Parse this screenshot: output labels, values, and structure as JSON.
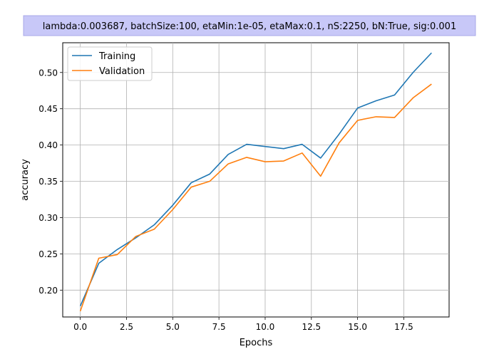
{
  "chart_data": {
    "type": "line",
    "title": "lambda:0.003687, batchSize:100, etaMin:1e-05, etaMax:0.1, nS:2250, bN:True, sig:0.001",
    "xlabel": "Epochs",
    "ylabel": "accuracy",
    "xlim": [
      -0.95,
      19.95
    ],
    "ylim": [
      0.163,
      0.541
    ],
    "x_ticks": [
      0.0,
      2.5,
      5.0,
      7.5,
      10.0,
      12.5,
      15.0,
      17.5
    ],
    "x_tick_labels": [
      "0.0",
      "2.5",
      "5.0",
      "7.5",
      "10.0",
      "12.5",
      "15.0",
      "17.5"
    ],
    "y_ticks": [
      0.2,
      0.25,
      0.3,
      0.35,
      0.4,
      0.45,
      0.5
    ],
    "y_tick_labels": [
      "0.20",
      "0.25",
      "0.30",
      "0.35",
      "0.40",
      "0.45",
      "0.50"
    ],
    "grid": true,
    "legend_position": "top-left",
    "x": [
      0,
      1,
      2,
      3,
      4,
      5,
      6,
      7,
      8,
      9,
      10,
      11,
      12,
      13,
      14,
      15,
      16,
      17,
      18,
      19
    ],
    "series": [
      {
        "name": "Training",
        "color": "#1f77b4",
        "values": [
          0.178,
          0.237,
          0.256,
          0.272,
          0.29,
          0.317,
          0.348,
          0.36,
          0.387,
          0.401,
          0.398,
          0.395,
          0.401,
          0.382,
          0.415,
          0.451,
          0.461,
          0.469,
          0.5,
          0.527
        ]
      },
      {
        "name": "Validation",
        "color": "#ff7f0e",
        "values": [
          0.171,
          0.244,
          0.249,
          0.274,
          0.284,
          0.311,
          0.342,
          0.35,
          0.374,
          0.383,
          0.377,
          0.378,
          0.389,
          0.357,
          0.403,
          0.434,
          0.439,
          0.438,
          0.465,
          0.484
        ]
      }
    ]
  }
}
